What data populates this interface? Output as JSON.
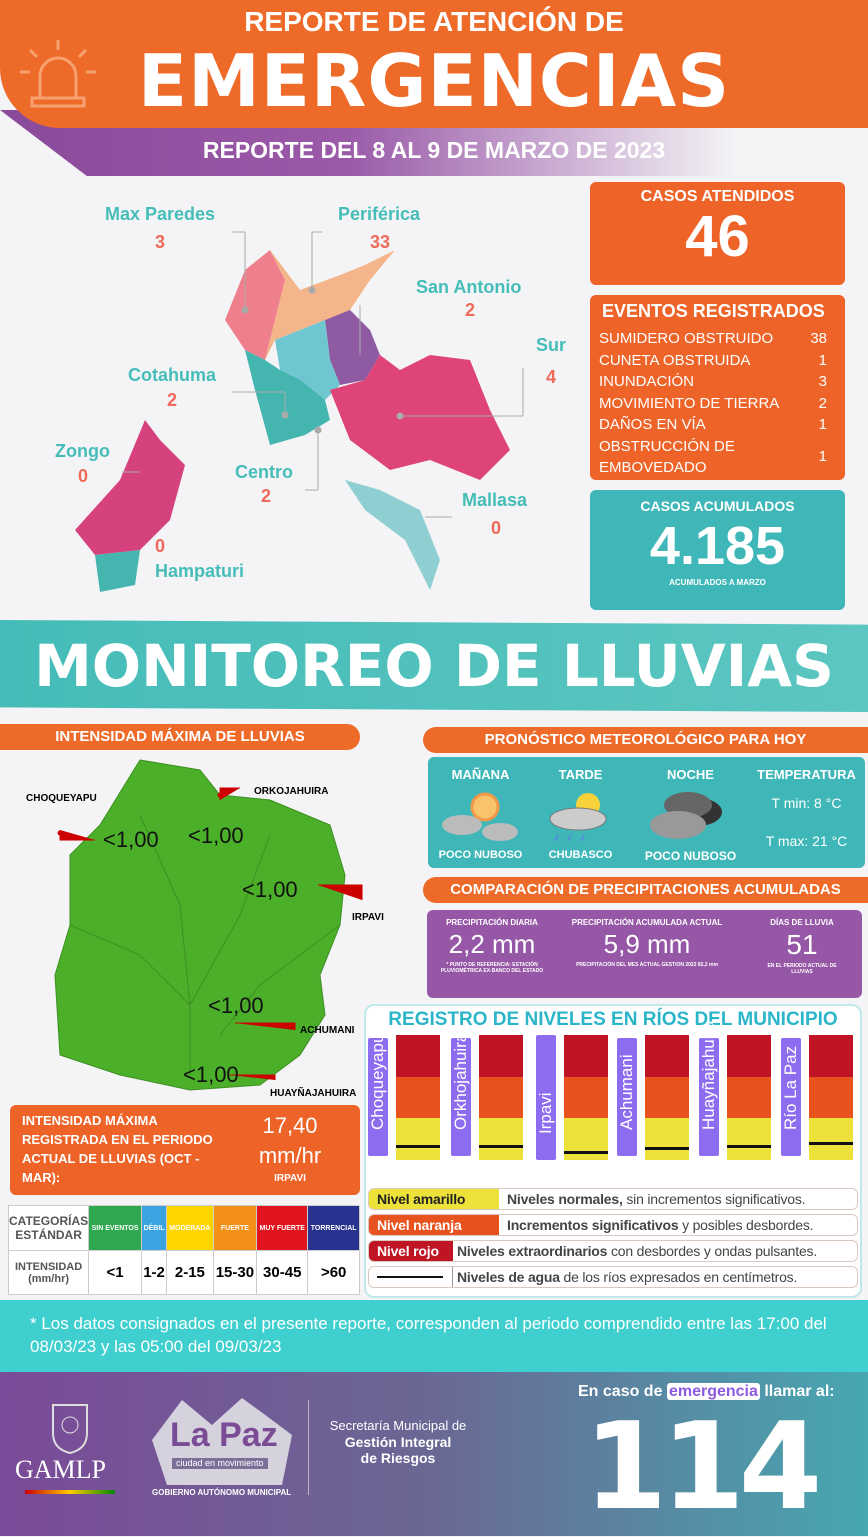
{
  "header": {
    "title_line1": "REPORTE DE ATENCIÓN DE",
    "title_line2": "EMERGENCIAS",
    "period": "REPORTE DEL 8  AL 9 DE MARZO DE 2023"
  },
  "colors": {
    "orange": "#ee6328",
    "teal": "#3fb7b8",
    "purple": "#8e5aa2",
    "green": "#4caf2a"
  },
  "zones": [
    {
      "name": "Max Paredes",
      "count": "3"
    },
    {
      "name": "Periférica",
      "count": "33"
    },
    {
      "name": "San Antonio",
      "count": "2"
    },
    {
      "name": "Sur",
      "count": "4"
    },
    {
      "name": "Cotahuma",
      "count": "2"
    },
    {
      "name": "Zongo",
      "count": "0"
    },
    {
      "name": "Centro",
      "count": "2"
    },
    {
      "name": "Mallasa",
      "count": "0"
    },
    {
      "name": "Hampaturi",
      "count": "0"
    }
  ],
  "casos_atendidos": {
    "label": "CASOS ATENDIDOS",
    "value": "46"
  },
  "eventos": {
    "title": "EVENTOS REGISTRADOS",
    "items": [
      {
        "label": "SUMIDERO OBSTRUIDO",
        "value": "38"
      },
      {
        "label": "CUNETA OBSTRUIDA",
        "value": "1"
      },
      {
        "label": "INUNDACIÓN",
        "value": "3"
      },
      {
        "label": "MOVIMIENTO DE TIERRA",
        "value": "2"
      },
      {
        "label": "DAÑOS EN VÍA",
        "value": "1"
      },
      {
        "label": "OBSTRUCCIÓN DE EMBOVEDADO",
        "value": "1"
      }
    ]
  },
  "acumulados": {
    "label": "CASOS ACUMULADOS",
    "value": "4.185",
    "note": "ACUMULADOS  A MARZO"
  },
  "monitoreo": {
    "title": "MONITOREO DE LLUVIAS"
  },
  "intensidad": {
    "title": "INTENSIDAD MÁXIMA  DE LLUVIAS",
    "stations": [
      {
        "name": "CHOQUEYAPU",
        "value": "<1,00"
      },
      {
        "name": "ORKOJAHUIRA",
        "value": "<1,00"
      },
      {
        "name": "IRPAVI",
        "value": "<1,00"
      },
      {
        "name": "ACHUMANI",
        "value": "<1,00"
      },
      {
        "name": "HUAYÑAJAHUIRA",
        "value": "<1,00"
      }
    ],
    "max_label": "INTENSIDAD MÁXIMA REGISTRADA EN EL PERIODO ACTUAL DE LLUVIAS (OCT - MAR):",
    "max_value": "17,40",
    "max_unit": "mm/hr",
    "max_station": "IRPAVI"
  },
  "categorias": {
    "row1_label": "CATEGORÍAS ESTÁNDAR",
    "row2_label": "INTENSIDAD (mm/hr)",
    "items": [
      {
        "name": "SIN EVENTOS",
        "range": "<1",
        "color": "#2fa84f"
      },
      {
        "name": "DÉBIL",
        "range": "1-2",
        "color": "#3aa3e0"
      },
      {
        "name": "MODERADA",
        "range": "2-15",
        "color": "#ffd500"
      },
      {
        "name": "FUERTE",
        "range": "15-30",
        "color": "#f39018"
      },
      {
        "name": "MUY FUERTE",
        "range": "30-45",
        "color": "#e0141e"
      },
      {
        "name": "TORRENCIAL",
        "range": ">60",
        "color": "#27338f"
      }
    ]
  },
  "pronostico": {
    "title": "PRONÓSTICO METEOROLÓGICO PARA HOY",
    "periods": [
      {
        "label": "MAÑANA",
        "condition": "POCO NUBOSO",
        "icon": "sun-cloud-icon"
      },
      {
        "label": "TARDE",
        "condition": "CHUBASCO",
        "icon": "sun-rain-icon"
      },
      {
        "label": "NOCHE",
        "condition": "POCO NUBOSO",
        "icon": "dark-clouds-icon"
      }
    ],
    "temp_label": "TEMPERATURA",
    "tmin": "T min:  8 °C",
    "tmax": "T max: 21 °C"
  },
  "comparacion": {
    "title": "COMPARACIÓN DE PRECIPITACIONES ACUMULADAS",
    "items": [
      {
        "label": "PRECIPITACIÓN DIARIA",
        "value": "2,2 mm",
        "note": "* PUNTO DE REFERENCIA: ESTACIÓN PLUVIOMÉTRICA EX-BANCO DEL ESTADO"
      },
      {
        "label": "PRECIPITACIÓN ACUMULADA ACTUAL",
        "value": "5,9 mm",
        "note": "PRECIPITACIÓN DEL MES ACTUAL  GESTION 2022 82,2 mm"
      },
      {
        "label": "DÍAS DE LLUVIA",
        "value": "51",
        "note": "EN EL PERIODO ACTUAL DE LLUVIAS"
      }
    ]
  },
  "rios": {
    "title": "REGISTRO DE NIVELES EN RÍOS DEL MUNICIPIO",
    "items": [
      {
        "name": "Choqueyapu",
        "level": 0.1
      },
      {
        "name": "Orkhojahuira",
        "level": 0.1
      },
      {
        "name": "Irpavi",
        "level": 0.05
      },
      {
        "name": "Achumani",
        "level": 0.08
      },
      {
        "name": "Huayñajahuira",
        "level": 0.1
      },
      {
        "name": "Río La Paz",
        "level": 0.12
      }
    ],
    "legend": [
      {
        "key": "Nivel amarillo",
        "bold": "Niveles normales,",
        "text": " sin incrementos significativos.",
        "color": "#ece23a"
      },
      {
        "key": "Nivel naranja",
        "bold": "Incrementos significativos",
        "text": " y posibles desbordes.",
        "color": "#e8521e"
      },
      {
        "key": "Nivel rojo",
        "bold": "Niveles extraordinarios",
        "text": " con desbordes y ondas pulsantes.",
        "color": "#be1424"
      },
      {
        "key": "",
        "bold": "Niveles de agua",
        "text": " de los ríos expresados en centímetros.",
        "color": "#ffffff"
      }
    ]
  },
  "nota": "* Los datos consignados en el presente reporte, corresponden al periodo comprendido entre las 17:00 del 08/03/23 y las 05:00 del 09/03/23",
  "footer": {
    "gamlp": "GAMLP",
    "lapaz": "La Paz",
    "lapaz_sub": "ciudad en movimiento",
    "gobierno": "GOBIERNO AUTÓNOMO MUNICIPAL",
    "secretaria_line1": "Secretaría Municipal de",
    "secretaria_line2": "Gestión Integral",
    "secretaria_line3": "de Riesgos",
    "call_pre": "En caso de",
    "call_highlight": "emergencia",
    "call_post": "llamar al:",
    "phone": "114"
  }
}
